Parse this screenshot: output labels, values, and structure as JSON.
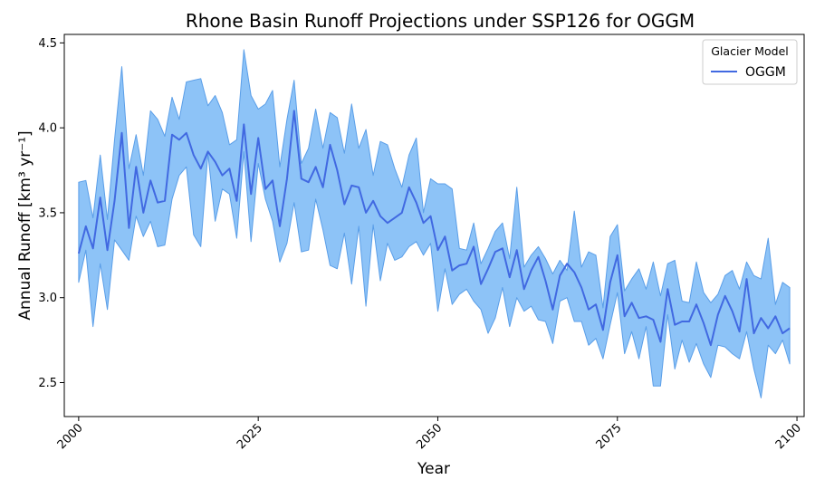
{
  "chart_data": {
    "type": "line",
    "title": "Rhone Basin Runoff Projections under SSP126 for OGGM",
    "xlabel": "Year",
    "ylabel": "Annual Runoff [km³ yr⁻¹]",
    "xlim": [
      1998,
      2101
    ],
    "ylim": [
      2.3,
      4.55
    ],
    "xticks": [
      2000,
      2025,
      2050,
      2075,
      2100
    ],
    "yticks": [
      2.5,
      3.0,
      3.5,
      4.0,
      4.5
    ],
    "ytick_labels": [
      "2.5",
      "3.0",
      "3.5",
      "4.0",
      "4.5"
    ],
    "legend": {
      "title": "Glacier Model",
      "placement": "top-right"
    },
    "colors": {
      "line": "#4169e1",
      "band": "#8dc3f7",
      "band_edge": "#5a9ee8"
    },
    "x": [
      2000,
      2001,
      2002,
      2003,
      2004,
      2005,
      2006,
      2007,
      2008,
      2009,
      2010,
      2011,
      2012,
      2013,
      2014,
      2015,
      2016,
      2017,
      2018,
      2019,
      2020,
      2021,
      2022,
      2023,
      2024,
      2025,
      2026,
      2027,
      2028,
      2029,
      2030,
      2031,
      2032,
      2033,
      2034,
      2035,
      2036,
      2037,
      2038,
      2039,
      2040,
      2041,
      2042,
      2043,
      2044,
      2045,
      2046,
      2047,
      2048,
      2049,
      2050,
      2051,
      2052,
      2053,
      2054,
      2055,
      2056,
      2057,
      2058,
      2059,
      2060,
      2061,
      2062,
      2063,
      2064,
      2065,
      2066,
      2067,
      2068,
      2069,
      2070,
      2071,
      2072,
      2073,
      2074,
      2075,
      2076,
      2077,
      2078,
      2079,
      2080,
      2081,
      2082,
      2083,
      2084,
      2085,
      2086,
      2087,
      2088,
      2089,
      2090,
      2091,
      2092,
      2093,
      2094,
      2095,
      2096,
      2097,
      2098,
      2099
    ],
    "series": [
      {
        "name": "OGGM",
        "values": [
          3.26,
          3.42,
          3.29,
          3.59,
          3.28,
          3.57,
          3.97,
          3.41,
          3.77,
          3.5,
          3.69,
          3.56,
          3.57,
          3.96,
          3.93,
          3.97,
          3.84,
          3.76,
          3.86,
          3.8,
          3.72,
          3.76,
          3.57,
          4.02,
          3.61,
          3.94,
          3.64,
          3.69,
          3.42,
          3.7,
          4.1,
          3.7,
          3.68,
          3.77,
          3.65,
          3.9,
          3.75,
          3.55,
          3.66,
          3.65,
          3.5,
          3.57,
          3.48,
          3.44,
          3.47,
          3.5,
          3.65,
          3.56,
          3.44,
          3.48,
          3.28,
          3.36,
          3.16,
          3.19,
          3.2,
          3.3,
          3.08,
          3.17,
          3.27,
          3.29,
          3.12,
          3.28,
          3.05,
          3.16,
          3.24,
          3.1,
          2.93,
          3.13,
          3.2,
          3.15,
          3.06,
          2.93,
          2.96,
          2.81,
          3.09,
          3.25,
          2.89,
          2.97,
          2.88,
          2.89,
          2.87,
          2.74,
          3.05,
          2.84,
          2.86,
          2.86,
          2.96,
          2.85,
          2.72,
          2.9,
          3.01,
          2.92,
          2.8,
          3.11,
          2.79,
          2.88,
          2.82,
          2.89,
          2.79,
          2.82
        ],
        "lower": [
          3.09,
          3.28,
          2.83,
          3.2,
          2.93,
          3.34,
          3.28,
          3.22,
          3.48,
          3.36,
          3.45,
          3.3,
          3.31,
          3.58,
          3.72,
          3.77,
          3.37,
          3.3,
          3.85,
          3.45,
          3.64,
          3.61,
          3.35,
          3.86,
          3.33,
          3.79,
          3.58,
          3.45,
          3.21,
          3.32,
          3.56,
          3.27,
          3.28,
          3.58,
          3.4,
          3.19,
          3.17,
          3.38,
          3.08,
          3.42,
          2.95,
          3.43,
          3.1,
          3.32,
          3.22,
          3.24,
          3.3,
          3.33,
          3.25,
          3.32,
          2.92,
          3.17,
          2.96,
          3.02,
          3.05,
          2.98,
          2.93,
          2.79,
          2.88,
          3.06,
          2.83,
          3.0,
          2.92,
          2.95,
          2.87,
          2.86,
          2.73,
          2.98,
          3.0,
          2.86,
          2.86,
          2.72,
          2.76,
          2.64,
          2.84,
          3.03,
          2.67,
          2.8,
          2.64,
          2.83,
          2.48,
          2.48,
          2.9,
          2.58,
          2.75,
          2.62,
          2.73,
          2.61,
          2.53,
          2.72,
          2.71,
          2.67,
          2.64,
          2.8,
          2.58,
          2.41,
          2.72,
          2.67,
          2.75,
          2.61
        ],
        "upper": [
          3.68,
          3.69,
          3.47,
          3.84,
          3.46,
          3.93,
          4.36,
          3.76,
          3.96,
          3.72,
          4.1,
          4.05,
          3.95,
          4.18,
          4.05,
          4.27,
          4.28,
          4.29,
          4.13,
          4.19,
          4.09,
          3.9,
          3.93,
          4.46,
          4.19,
          4.11,
          4.14,
          4.22,
          3.77,
          4.05,
          4.28,
          3.79,
          3.88,
          4.11,
          3.88,
          4.09,
          4.06,
          3.85,
          4.14,
          3.88,
          3.99,
          3.72,
          3.92,
          3.9,
          3.76,
          3.65,
          3.84,
          3.94,
          3.5,
          3.7,
          3.67,
          3.67,
          3.64,
          3.29,
          3.28,
          3.44,
          3.2,
          3.29,
          3.39,
          3.44,
          3.23,
          3.65,
          3.18,
          3.25,
          3.3,
          3.23,
          3.14,
          3.22,
          3.16,
          3.51,
          3.18,
          3.27,
          3.25,
          2.94,
          3.36,
          3.43,
          3.04,
          3.11,
          3.17,
          3.05,
          3.21,
          3.01,
          3.2,
          3.22,
          2.98,
          2.97,
          3.21,
          3.03,
          2.97,
          3.02,
          3.13,
          3.16,
          3.05,
          3.21,
          3.13,
          3.11,
          3.35,
          2.96,
          3.09,
          3.06
        ]
      }
    ]
  }
}
